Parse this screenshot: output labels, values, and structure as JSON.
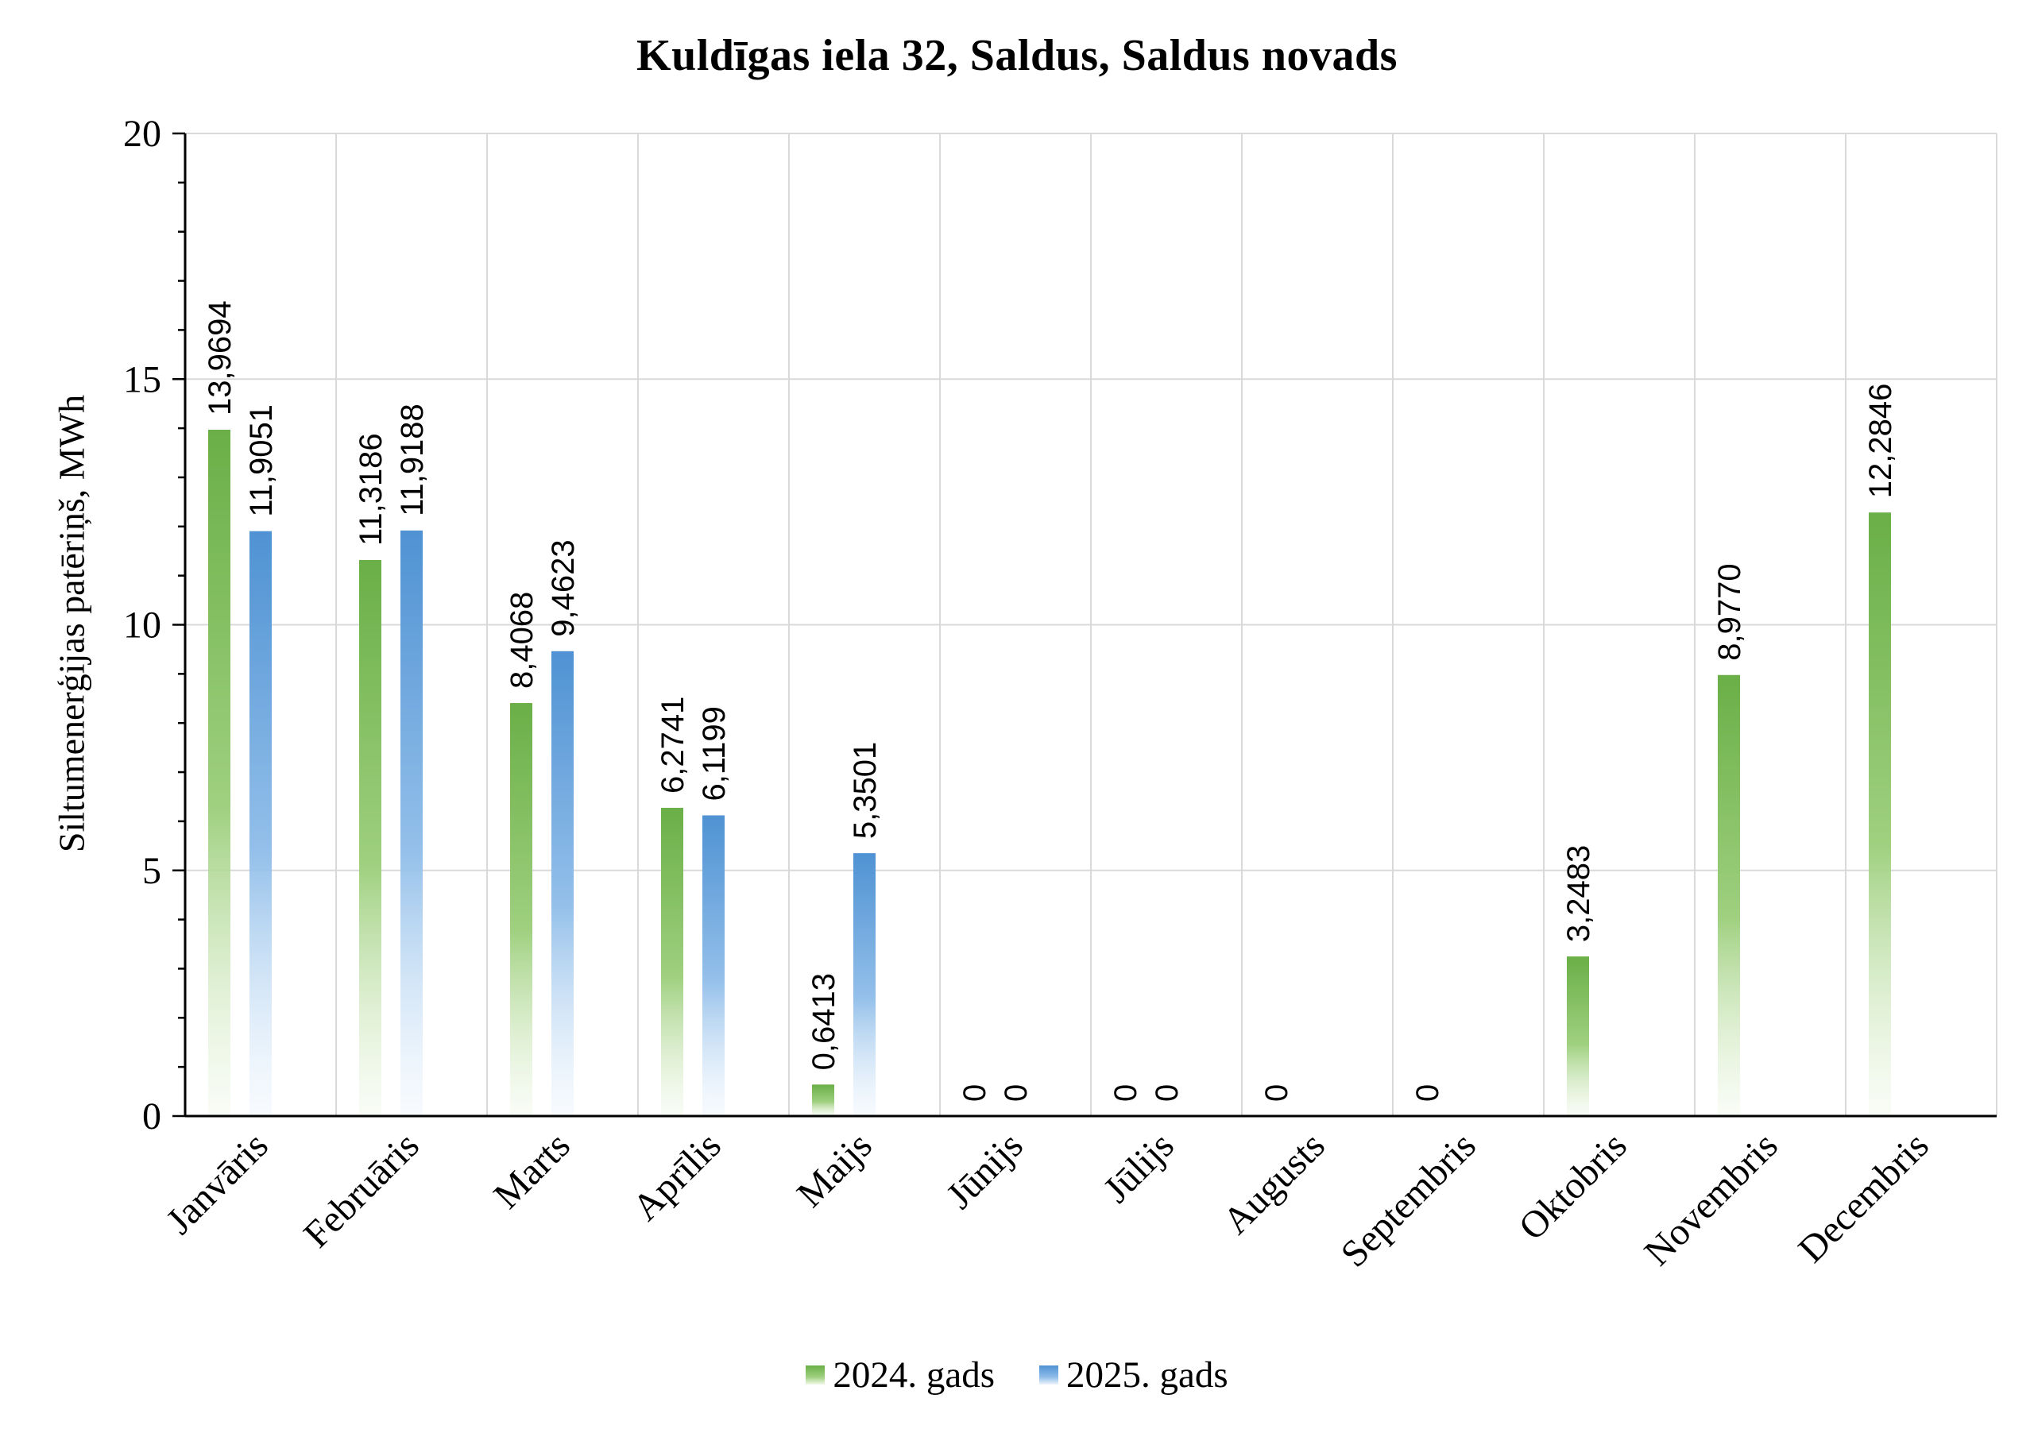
{
  "colors": {
    "series_2024": "#6aaf47",
    "series_2025": "#4f92d3",
    "gridline": "#d9d9d9",
    "axis": "#000000"
  },
  "chart_data": {
    "type": "bar",
    "title": "Kuldīgas iela 32, Saldus, Saldus novads",
    "xlabel": "",
    "ylabel": "Siltumenerģijas patēriņš, MWh",
    "ylim": [
      0,
      20
    ],
    "yticks": [
      0,
      5,
      10,
      15,
      20
    ],
    "ytick_labels": [
      "0",
      "5",
      "10",
      "15",
      "20"
    ],
    "grid": true,
    "legend_position": "bottom",
    "categories": [
      "Janvāris",
      "Februāris",
      "Marts",
      "Aprīlis",
      "Maijs",
      "Jūnijs",
      "Jūlijs",
      "Augusts",
      "Septembris",
      "Oktobris",
      "Novembris",
      "Decembris"
    ],
    "series": [
      {
        "name": "2024. gads",
        "values": [
          13.9694,
          11.3186,
          8.4068,
          6.2741,
          0.6413,
          0,
          0,
          0,
          0,
          3.2483,
          8.977,
          12.2846
        ],
        "labels": [
          "13,9694",
          "11,3186",
          "8,4068",
          "6,2741",
          "0,6413",
          "0",
          "0",
          "0",
          "0",
          "3,2483",
          "8,9770",
          "12,2846"
        ]
      },
      {
        "name": "2025. gads",
        "values": [
          11.9051,
          11.9188,
          9.4623,
          6.1199,
          5.3501,
          0,
          0,
          null,
          null,
          null,
          null,
          null
        ],
        "labels": [
          "11,9051",
          "11,9188",
          "9,4623",
          "6,1199",
          "5,3501",
          "0",
          "0",
          "",
          "",
          "",
          "",
          ""
        ]
      }
    ]
  }
}
